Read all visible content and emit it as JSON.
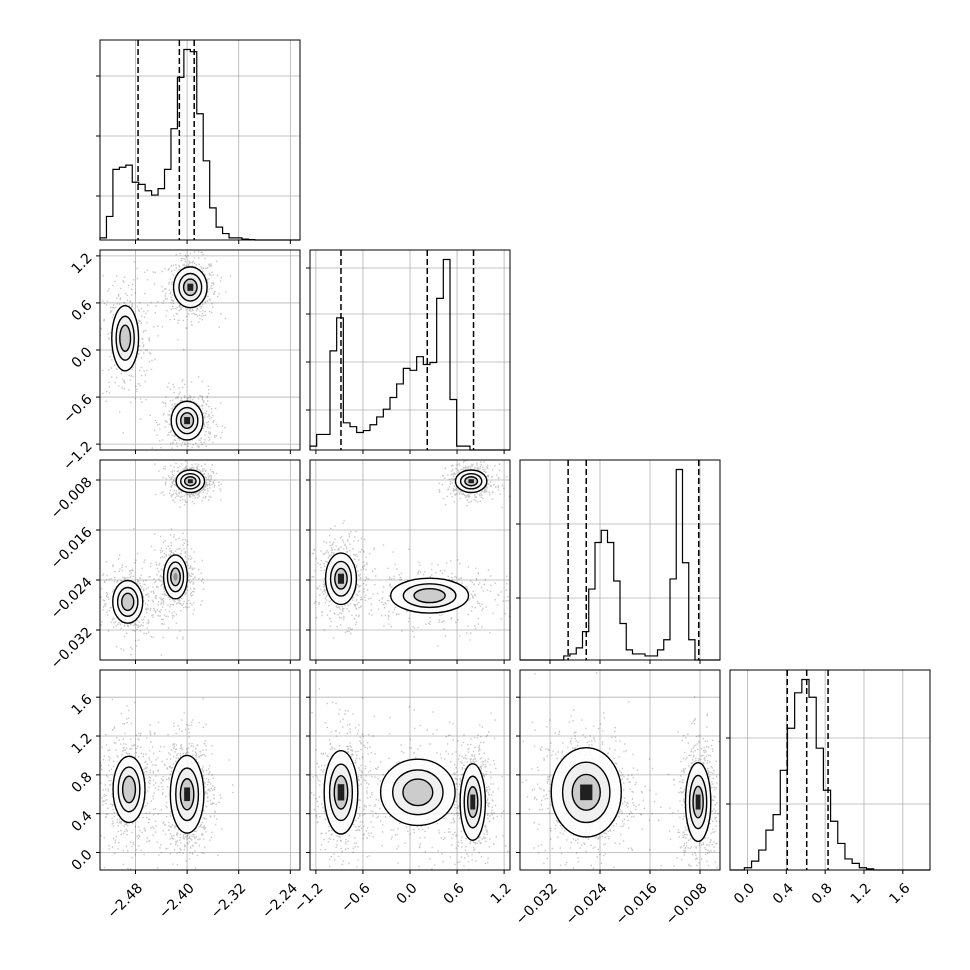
{
  "chart_data": {
    "type": "corner",
    "n_params": 4,
    "grid": true,
    "colors": {
      "line": "#000000",
      "grid": "#b0b0b0",
      "background": "#ffffff",
      "density": "#000000"
    },
    "ranges": [
      [
        -2.535,
        -2.225
      ],
      [
        -1.275,
        1.275
      ],
      [
        -0.0368,
        -0.0048
      ],
      [
        -0.18,
        1.88
      ]
    ],
    "ticks": [
      [
        -2.48,
        -2.4,
        -2.32,
        -2.24
      ],
      [
        -1.2,
        -0.6,
        0.0,
        0.6,
        1.2
      ],
      [
        -0.032,
        -0.024,
        -0.016,
        -0.008
      ],
      [
        0.0,
        0.4,
        0.8,
        1.2,
        1.6
      ]
    ],
    "tick_labels": [
      [
        "−2.48",
        "−2.40",
        "−2.32",
        "−2.24"
      ],
      [
        "−1.2",
        "−0.6",
        "0.0",
        "0.6",
        "1.2"
      ],
      [
        "−0.032",
        "−0.024",
        "−0.016",
        "−0.008"
      ],
      [
        "0.0",
        "0.4",
        "0.8",
        "1.2",
        "1.6"
      ]
    ],
    "hist_y_ticks": [
      [
        0.22,
        0.52,
        0.82
      ],
      [
        0.2,
        0.44,
        0.68,
        0.91
      ],
      [
        0.31,
        0.68
      ],
      [
        0.33,
        0.66
      ]
    ],
    "histograms": [
      {
        "param": 0,
        "edges": [
          -2.535,
          -2.525,
          -2.515,
          -2.505,
          -2.495,
          -2.485,
          -2.475,
          -2.465,
          -2.455,
          -2.445,
          -2.435,
          -2.425,
          -2.415,
          -2.405,
          -2.395,
          -2.385,
          -2.375,
          -2.365,
          -2.355,
          -2.345,
          -2.335,
          -2.325,
          -2.315,
          -2.305,
          -2.295,
          -2.285,
          -2.275,
          -2.265,
          -2.255,
          -2.245,
          -2.235,
          -2.225
        ],
        "counts": [
          0.01,
          0.11,
          0.33,
          0.34,
          0.35,
          0.27,
          0.26,
          0.23,
          0.21,
          0.24,
          0.33,
          0.52,
          0.76,
          0.89,
          0.88,
          0.59,
          0.37,
          0.15,
          0.06,
          0.03,
          0.01,
          0.01,
          0.004,
          0.002,
          0.0,
          0.0,
          0.0,
          0.0,
          0.0,
          0.0,
          0.0
        ],
        "quantiles": [
          -2.476,
          -2.412,
          -2.389
        ]
      },
      {
        "param": 1,
        "edges": [
          -1.275,
          -1.19,
          -1.105,
          -1.02,
          -0.935,
          -0.85,
          -0.765,
          -0.68,
          -0.595,
          -0.51,
          -0.425,
          -0.34,
          -0.255,
          -0.17,
          -0.085,
          0.0,
          0.085,
          0.17,
          0.255,
          0.34,
          0.425,
          0.51,
          0.595,
          0.68,
          0.765,
          0.85,
          0.935,
          1.02,
          1.105,
          1.19,
          1.275
        ],
        "counts": [
          0.02,
          0.08,
          0.08,
          0.51,
          0.68,
          0.14,
          0.12,
          0.09,
          0.1,
          0.13,
          0.17,
          0.21,
          0.27,
          0.34,
          0.42,
          0.41,
          0.48,
          0.44,
          0.45,
          0.78,
          0.98,
          0.26,
          0.02,
          0.02,
          0.0,
          0.0,
          0.0,
          0.0,
          0.0,
          0.0
        ],
        "quantiles": [
          -0.88,
          0.22,
          0.81
        ]
      },
      {
        "param": 2,
        "edges": [
          -0.0368,
          -0.0358,
          -0.0348,
          -0.0338,
          -0.0328,
          -0.0318,
          -0.0308,
          -0.0298,
          -0.0288,
          -0.0278,
          -0.0268,
          -0.0258,
          -0.0248,
          -0.0238,
          -0.0228,
          -0.0218,
          -0.0208,
          -0.0198,
          -0.0188,
          -0.0178,
          -0.0168,
          -0.0158,
          -0.0148,
          -0.0138,
          -0.0128,
          -0.0118,
          -0.0108,
          -0.0098,
          -0.0088,
          -0.0078,
          -0.0068,
          -0.0058,
          -0.0048
        ],
        "counts": [
          0.0,
          0.0,
          0.0,
          0.0,
          0.0,
          0.0,
          0.0,
          0.02,
          0.03,
          0.06,
          0.14,
          0.35,
          0.58,
          0.64,
          0.58,
          0.39,
          0.18,
          0.05,
          0.03,
          0.03,
          0.02,
          0.02,
          0.05,
          0.1,
          0.4,
          0.94,
          0.48,
          0.1,
          0.0,
          0.0,
          0.0,
          0.0
        ],
        "quantiles": [
          -0.0291,
          -0.0262,
          -0.0082
        ]
      },
      {
        "param": 3,
        "edges": [
          -0.18,
          -0.106,
          -0.032,
          0.042,
          0.116,
          0.19,
          0.264,
          0.338,
          0.412,
          0.486,
          0.56,
          0.634,
          0.708,
          0.782,
          0.856,
          0.93,
          1.004,
          1.078,
          1.152,
          1.226,
          1.3,
          1.374,
          1.448,
          1.522,
          1.596,
          1.67,
          1.744,
          1.818,
          1.88
        ],
        "counts": [
          0.0,
          0.0,
          0.01,
          0.04,
          0.09,
          0.18,
          0.25,
          0.45,
          0.64,
          0.8,
          0.86,
          0.78,
          0.55,
          0.36,
          0.22,
          0.12,
          0.05,
          0.03,
          0.01,
          0.005,
          0.0,
          0.0,
          0.0,
          0.0,
          0.0,
          0.0,
          0.0,
          0.0
        ],
        "quantiles": [
          0.41,
          0.61,
          0.83
        ]
      }
    ],
    "modes_2d": [
      {
        "px": 0,
        "py": 1,
        "blobs": [
          {
            "cx": -2.395,
            "cy": 0.8,
            "sx": 0.013,
            "sy": 0.13,
            "w": 1.0
          },
          {
            "cx": -2.496,
            "cy": 0.15,
            "sx": 0.014,
            "sy": 0.28,
            "w": 0.55
          },
          {
            "cx": -2.4,
            "cy": -0.9,
            "sx": 0.013,
            "sy": 0.13,
            "w": 0.9
          }
        ]
      },
      {
        "px": 0,
        "py": 2,
        "blobs": [
          {
            "cx": -2.395,
            "cy": -0.0082,
            "sx": 0.011,
            "sy": 0.0009,
            "w": 1.0
          },
          {
            "cx": -2.492,
            "cy": -0.0275,
            "sx": 0.015,
            "sy": 0.0022,
            "w": 0.6
          },
          {
            "cx": -2.418,
            "cy": -0.0235,
            "sx": 0.011,
            "sy": 0.0021,
            "w": 0.7
          }
        ]
      },
      {
        "px": 1,
        "py": 2,
        "blobs": [
          {
            "cx": 0.78,
            "cy": -0.0082,
            "sx": 0.1,
            "sy": 0.0009,
            "w": 1.0
          },
          {
            "cx": -0.88,
            "cy": -0.0238,
            "sx": 0.11,
            "sy": 0.0023,
            "w": 0.8
          },
          {
            "cx": 0.25,
            "cy": -0.0265,
            "sx": 0.32,
            "sy": 0.0018,
            "w": 0.6
          }
        ]
      },
      {
        "px": 0,
        "py": 3,
        "blobs": [
          {
            "cx": -2.49,
            "cy": 0.65,
            "sx": 0.016,
            "sy": 0.22,
            "w": 0.6
          },
          {
            "cx": -2.4,
            "cy": 0.6,
            "sx": 0.013,
            "sy": 0.2,
            "w": 1.0
          }
        ]
      },
      {
        "px": 1,
        "py": 3,
        "blobs": [
          {
            "cx": -0.88,
            "cy": 0.62,
            "sx": 0.12,
            "sy": 0.24,
            "w": 0.8
          },
          {
            "cx": 0.1,
            "cy": 0.62,
            "sx": 0.32,
            "sy": 0.23,
            "w": 0.55
          },
          {
            "cx": 0.8,
            "cy": 0.52,
            "sx": 0.09,
            "sy": 0.22,
            "w": 0.8
          }
        ]
      },
      {
        "px": 2,
        "py": 3,
        "blobs": [
          {
            "cx": -0.0262,
            "cy": 0.62,
            "sx": 0.0028,
            "sy": 0.23,
            "w": 1.0
          },
          {
            "cx": -0.0083,
            "cy": 0.52,
            "sx": 0.0011,
            "sy": 0.22,
            "w": 0.85
          }
        ]
      }
    ]
  }
}
